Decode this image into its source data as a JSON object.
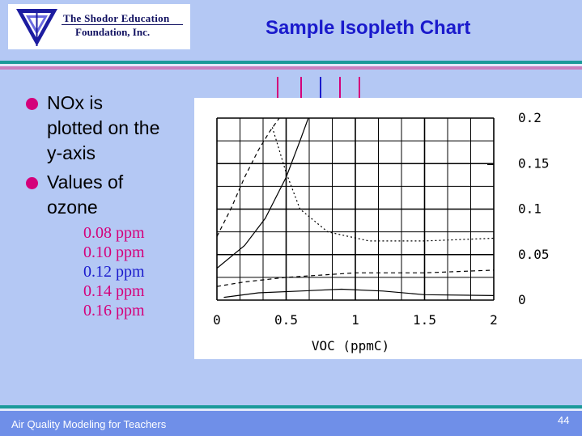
{
  "logo": {
    "line1": "The Shodor Education",
    "line2": "Foundation, Inc.",
    "colors": {
      "outer": "#1c1ca0",
      "inner": "#6a6ae0"
    }
  },
  "slide": {
    "title": "Sample Isopleth Chart",
    "bullets": [
      {
        "text": "NOx is plotted on the y-axis"
      },
      {
        "text": "Values of ozone"
      }
    ],
    "ozone_values": [
      {
        "label": "0.08 ppm",
        "color": "#d4007a"
      },
      {
        "label": "0.10 ppm",
        "color": "#d4007a"
      },
      {
        "label": "0.12 ppm",
        "color": "#1a1acc"
      },
      {
        "label": "0.14 ppm",
        "color": "#d4007a"
      },
      {
        "label": "0.16 ppm",
        "color": "#d4007a"
      }
    ]
  },
  "footer": {
    "course": "Air Quality Modeling for Teachers",
    "page": "44"
  },
  "colors": {
    "background": "#b4c8f4",
    "accent_teal": "#1a9a9a",
    "accent_magenta": "#d4007a",
    "accent_blue": "#1a1acc"
  },
  "arrows": [
    {
      "color": "#d4007a"
    },
    {
      "color": "#d4007a"
    },
    {
      "color": "#1a1acc"
    },
    {
      "color": "#d4007a"
    },
    {
      "color": "#d4007a"
    }
  ],
  "chart_data": {
    "type": "line",
    "xlabel": "VOC (ppmC)",
    "ylabel": "",
    "x_ticks": [
      "0",
      "0.5",
      "1",
      "1.5",
      "2"
    ],
    "y_ticks": [
      "0",
      "0.05",
      "0.1",
      "0.15",
      "0.2"
    ],
    "xlim": [
      0,
      2
    ],
    "ylim": [
      0,
      0.2
    ],
    "grid": true,
    "series": [
      {
        "name": "0.08 ppm",
        "style": "dash",
        "points": [
          [
            0,
            0.07
          ],
          [
            0.1,
            0.1
          ],
          [
            0.2,
            0.135
          ],
          [
            0.3,
            0.165
          ],
          [
            0.38,
            0.185
          ],
          [
            0.45,
            0.2
          ]
        ]
      },
      {
        "name": "0.10 ppm",
        "style": "solid",
        "points": [
          [
            0,
            0.035
          ],
          [
            0.2,
            0.06
          ],
          [
            0.35,
            0.09
          ],
          [
            0.5,
            0.135
          ],
          [
            0.6,
            0.175
          ],
          [
            0.66,
            0.2
          ]
        ]
      },
      {
        "name": "0.12 ppm",
        "style": "dot",
        "points": [
          [
            0.4,
            0.19
          ],
          [
            0.5,
            0.14
          ],
          [
            0.6,
            0.1
          ],
          [
            0.8,
            0.075
          ],
          [
            1.1,
            0.065
          ],
          [
            1.5,
            0.065
          ],
          [
            2,
            0.068
          ]
        ]
      },
      {
        "name": "0.14 ppm",
        "style": "solid",
        "points": [
          [
            0.05,
            0.003
          ],
          [
            0.3,
            0.008
          ],
          [
            0.6,
            0.01
          ],
          [
            0.9,
            0.012
          ],
          [
            1.2,
            0.01
          ],
          [
            1.5,
            0.006
          ],
          [
            2,
            0.005
          ]
        ]
      },
      {
        "name": "0.16 ppm",
        "style": "dash",
        "points": [
          [
            0,
            0.015
          ],
          [
            0.2,
            0.02
          ],
          [
            0.5,
            0.025
          ],
          [
            1,
            0.03
          ],
          [
            1.5,
            0.03
          ],
          [
            2,
            0.033
          ]
        ]
      }
    ]
  }
}
